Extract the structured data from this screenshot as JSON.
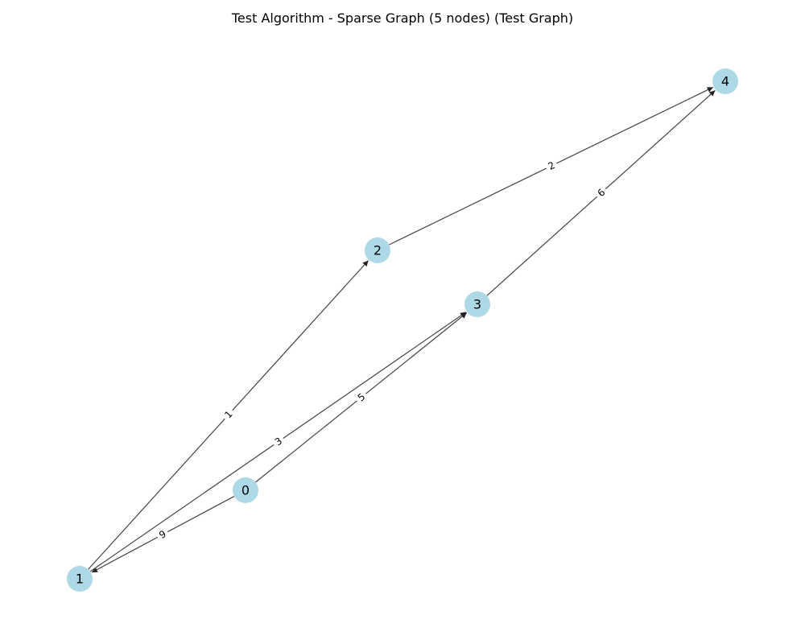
{
  "title": "Test Algorithm - Sparse Graph (5 nodes) (Test Graph)",
  "colors": {
    "node_fill": "#add8e6",
    "edge_stroke": "#444444",
    "label_text": "#000000",
    "background": "#ffffff"
  },
  "graph": {
    "directed": true,
    "nodes": [
      {
        "id": "0",
        "label": "0"
      },
      {
        "id": "1",
        "label": "1"
      },
      {
        "id": "2",
        "label": "2"
      },
      {
        "id": "3",
        "label": "3"
      },
      {
        "id": "4",
        "label": "4"
      }
    ],
    "edges": [
      {
        "source": "0",
        "target": "1",
        "weight": "9"
      },
      {
        "source": "0",
        "target": "3",
        "weight": "5"
      },
      {
        "source": "1",
        "target": "2",
        "weight": "1"
      },
      {
        "source": "1",
        "target": "3",
        "weight": "3"
      },
      {
        "source": "2",
        "target": "4",
        "weight": "2"
      },
      {
        "source": "3",
        "target": "4",
        "weight": "6"
      }
    ]
  }
}
